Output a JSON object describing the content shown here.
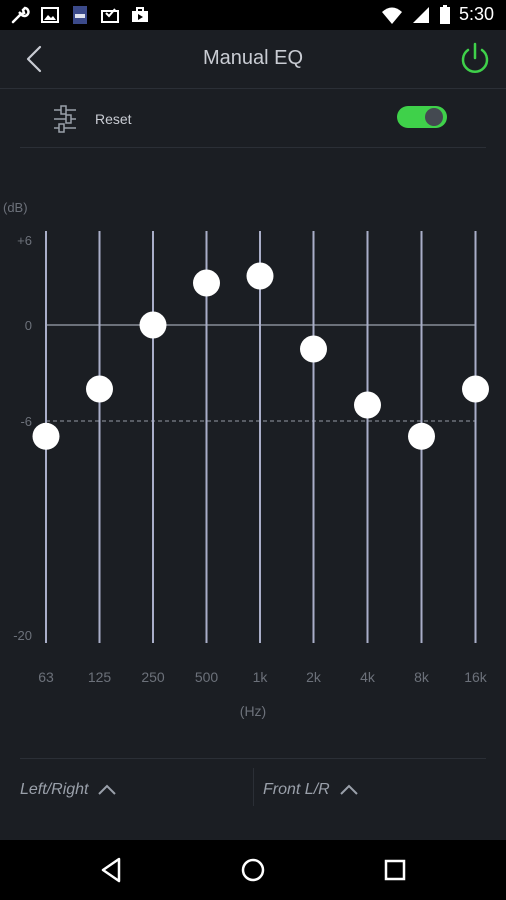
{
  "status_bar": {
    "time": "5:30",
    "left_icons": [
      "wrench-icon",
      "image-icon",
      "sd-card-icon",
      "mail-check-icon",
      "briefcase-icon"
    ],
    "right_icons": [
      "wifi-icon",
      "signal-icon",
      "battery-icon"
    ]
  },
  "header": {
    "title": "Manual EQ",
    "back_icon": "chevron-left-icon",
    "power_icon": "power-icon",
    "power_color": "#3fd14a"
  },
  "reset_row": {
    "label": "Reset",
    "icon": "sliders-icon",
    "toggle_on": true,
    "toggle_color": "#3fd14a"
  },
  "eq": {
    "db_unit": "(dB)",
    "hz_unit": "(Hz)",
    "db_ticks": [
      "+6",
      "0",
      "-6",
      "-20"
    ],
    "bands": [
      {
        "freq": "63",
        "gain_db": -7
      },
      {
        "freq": "125",
        "gain_db": -4
      },
      {
        "freq": "250",
        "gain_db": 0
      },
      {
        "freq": "500",
        "gain_db": 3
      },
      {
        "freq": "1k",
        "gain_db": 3.5
      },
      {
        "freq": "2k",
        "gain_db": -1.5
      },
      {
        "freq": "4k",
        "gain_db": -5
      },
      {
        "freq": "8k",
        "gain_db": -7
      },
      {
        "freq": "16k",
        "gain_db": -4
      }
    ],
    "range_db": [
      -20,
      6
    ]
  },
  "bottom": {
    "left_selector": "Left/Right",
    "right_selector": "Front L/R"
  },
  "nav": [
    "back-triangle-icon",
    "home-circle-icon",
    "recents-square-icon"
  ]
}
